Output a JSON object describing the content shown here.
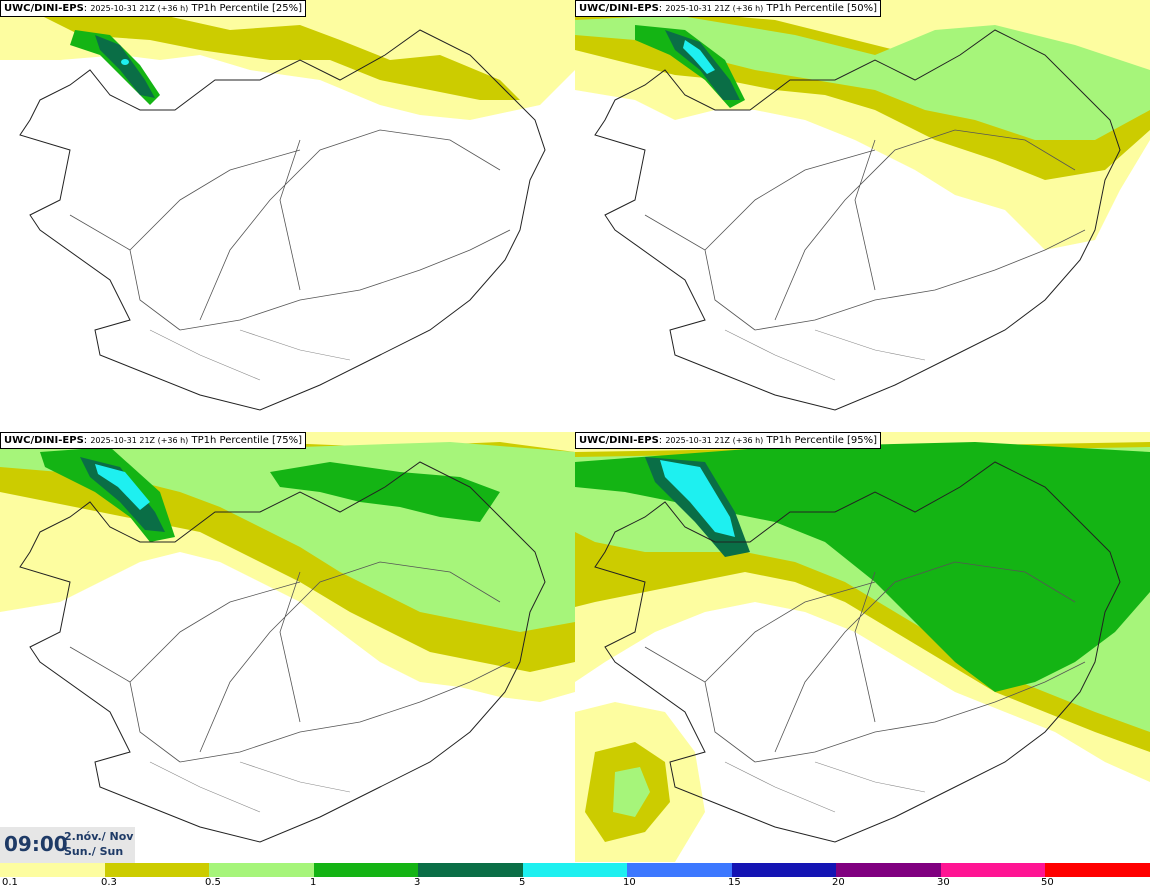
{
  "panels": [
    {
      "model": "UWC/DINI-EPS",
      "run": "2025-10-31 21Z (+36 h)",
      "title": "TP1h Percentile [25%]"
    },
    {
      "model": "UWC/DINI-EPS",
      "run": "2025-10-31 21Z (+36 h)",
      "title": "TP1h Percentile [50%]"
    },
    {
      "model": "UWC/DINI-EPS",
      "run": "2025-10-31 21Z (+36 h)",
      "title": "TP1h Percentile [75%]"
    },
    {
      "model": "UWC/DINI-EPS",
      "run": "2025-10-31 21Z (+36 h)",
      "title": "TP1h Percentile [95%]"
    }
  ],
  "time": {
    "clock": "09:00",
    "date": "2.nóv./ Nov",
    "day": "Sun./ Sun"
  },
  "legend": {
    "colors": [
      "#fdfda0",
      "#cccc00",
      "#a6f57a",
      "#14b414",
      "#0a6e46",
      "#1ef0f0",
      "#3c78ff",
      "#1414b4",
      "#800080",
      "#ff1493",
      "#ff0000"
    ],
    "labels": [
      "0.1",
      "0.3",
      "0.5",
      "1",
      "3",
      "5",
      "10",
      "15",
      "20",
      "30",
      "50"
    ]
  },
  "colors": {
    "light_yellow": "#fdfda0",
    "olive": "#cccc00",
    "light_green": "#a6f57a",
    "green": "#14b414",
    "dark_green": "#0a6e46",
    "cyan": "#1ef0f0"
  }
}
